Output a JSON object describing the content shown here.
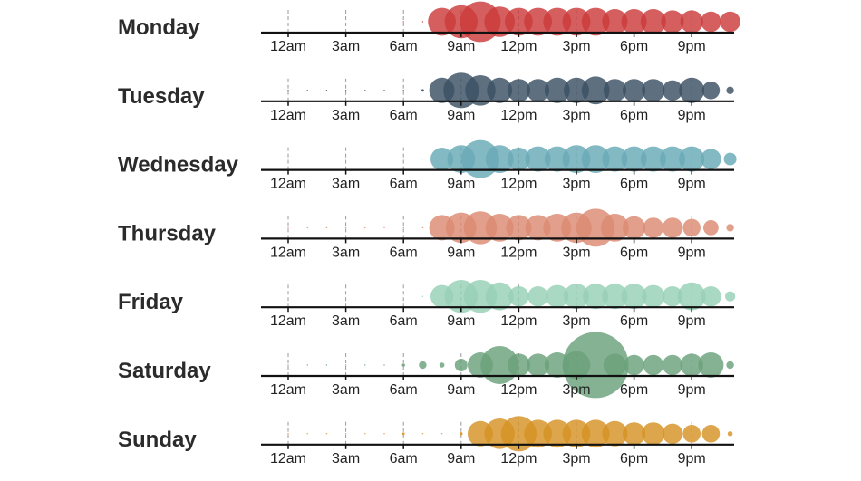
{
  "chart_data": {
    "type": "scatter",
    "title": "",
    "x_ticks": [
      "12am",
      "3am",
      "6am",
      "9am",
      "12pm",
      "3pm",
      "6pm",
      "9pm"
    ],
    "x_tick_hours": [
      0,
      3,
      6,
      9,
      12,
      15,
      18,
      21
    ],
    "xlim": [
      0,
      23
    ],
    "grid": false,
    "series": [
      {
        "name": "Monday",
        "color": "#cc3b3b",
        "values": [
          0,
          0,
          0,
          0,
          0,
          0,
          0.1,
          0.3,
          11,
          13,
          16,
          12,
          11,
          11,
          11,
          11,
          11,
          10,
          10,
          10,
          9,
          9,
          8,
          8
        ]
      },
      {
        "name": "Tuesday",
        "color": "#3a5063",
        "values": [
          0.2,
          0.3,
          0.3,
          0.3,
          0.2,
          0.2,
          0.3,
          1,
          10,
          14,
          12,
          10,
          9,
          9,
          10,
          10,
          11,
          9,
          9,
          9,
          8,
          10,
          7,
          3
        ]
      },
      {
        "name": "Wednesday",
        "color": "#68aab6",
        "values": [
          0.1,
          0,
          0,
          0,
          0,
          0,
          0.1,
          0.2,
          9,
          11,
          15,
          11,
          9,
          10,
          10,
          11,
          11,
          10,
          10,
          10,
          10,
          10,
          8,
          5
        ]
      },
      {
        "name": "Thursday",
        "color": "#dc8a72",
        "values": [
          0.2,
          0.3,
          0.3,
          0.3,
          0.1,
          0.1,
          0.3,
          0.4,
          10,
          12,
          13,
          11,
          10,
          10,
          11,
          12,
          15,
          11,
          9,
          8,
          8,
          7,
          6,
          3
        ]
      },
      {
        "name": "Friday",
        "color": "#96d0b6",
        "values": [
          0,
          0,
          0,
          0,
          0,
          0,
          0,
          0.3,
          9,
          13,
          13,
          11,
          8,
          8,
          9,
          10,
          10,
          10,
          10,
          9,
          8,
          11,
          8,
          4
        ]
      },
      {
        "name": "Saturday",
        "color": "#6aa17b",
        "values": [
          0.4,
          0.4,
          0.5,
          0.5,
          0.3,
          0.2,
          1.2,
          3,
          2,
          5,
          10,
          15,
          9,
          9,
          10,
          11,
          26,
          9,
          8,
          8,
          8,
          9,
          10,
          3
        ]
      },
      {
        "name": "Sunday",
        "color": "#d69225",
        "values": [
          0.3,
          0.4,
          0.3,
          0.3,
          0.2,
          0.2,
          1,
          0.5,
          0.4,
          1.2,
          10,
          12,
          14,
          11,
          11,
          11,
          11,
          10,
          9,
          9,
          8,
          7,
          7,
          2
        ]
      }
    ]
  }
}
